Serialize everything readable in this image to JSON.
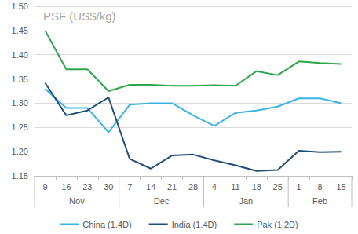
{
  "chart_data": {
    "type": "line",
    "title": "PSF (US$/kg)",
    "categories": [
      "9",
      "16",
      "23",
      "30",
      "7",
      "14",
      "21",
      "28",
      "4",
      "11",
      "18",
      "25",
      "1",
      "8",
      "15"
    ],
    "category_months": [
      "Nov",
      "Nov",
      "Nov",
      "Nov",
      "Dec",
      "Dec",
      "Dec",
      "Dec",
      "Jan",
      "Jan",
      "Jan",
      "Jan",
      "Feb",
      "Feb",
      "Feb"
    ],
    "series": [
      {
        "name": "China (1.4D)",
        "color": "#3ab4e6",
        "values": [
          1.33,
          1.29,
          1.29,
          1.24,
          1.297,
          1.3,
          1.3,
          1.275,
          1.253,
          1.28,
          1.285,
          1.293,
          1.31,
          1.31,
          1.3
        ]
      },
      {
        "name": "India (1.4D)",
        "color": "#1f4e79",
        "values": [
          1.342,
          1.275,
          1.285,
          1.312,
          1.185,
          1.165,
          1.192,
          1.194,
          1.182,
          1.172,
          1.16,
          1.162,
          1.202,
          1.199,
          1.2
        ]
      },
      {
        "name": "Pak (1.2D)",
        "color": "#2ea64a",
        "values": [
          1.45,
          1.37,
          1.37,
          1.325,
          1.338,
          1.338,
          1.336,
          1.336,
          1.337,
          1.336,
          1.366,
          1.358,
          1.386,
          1.383,
          1.381
        ]
      }
    ],
    "ylim": [
      1.15,
      1.5
    ],
    "yticks": [
      1.15,
      {
        "value": 1.2,
        "label": "1.20"
      },
      1.25,
      {
        "value": 1.3,
        "label": "1.30"
      },
      1.35,
      {
        "value": 1.4,
        "label": "1.40"
      },
      1.45,
      {
        "value": 1.5,
        "label": "1.50"
      }
    ],
    "grid": true,
    "legend": "bottom"
  }
}
